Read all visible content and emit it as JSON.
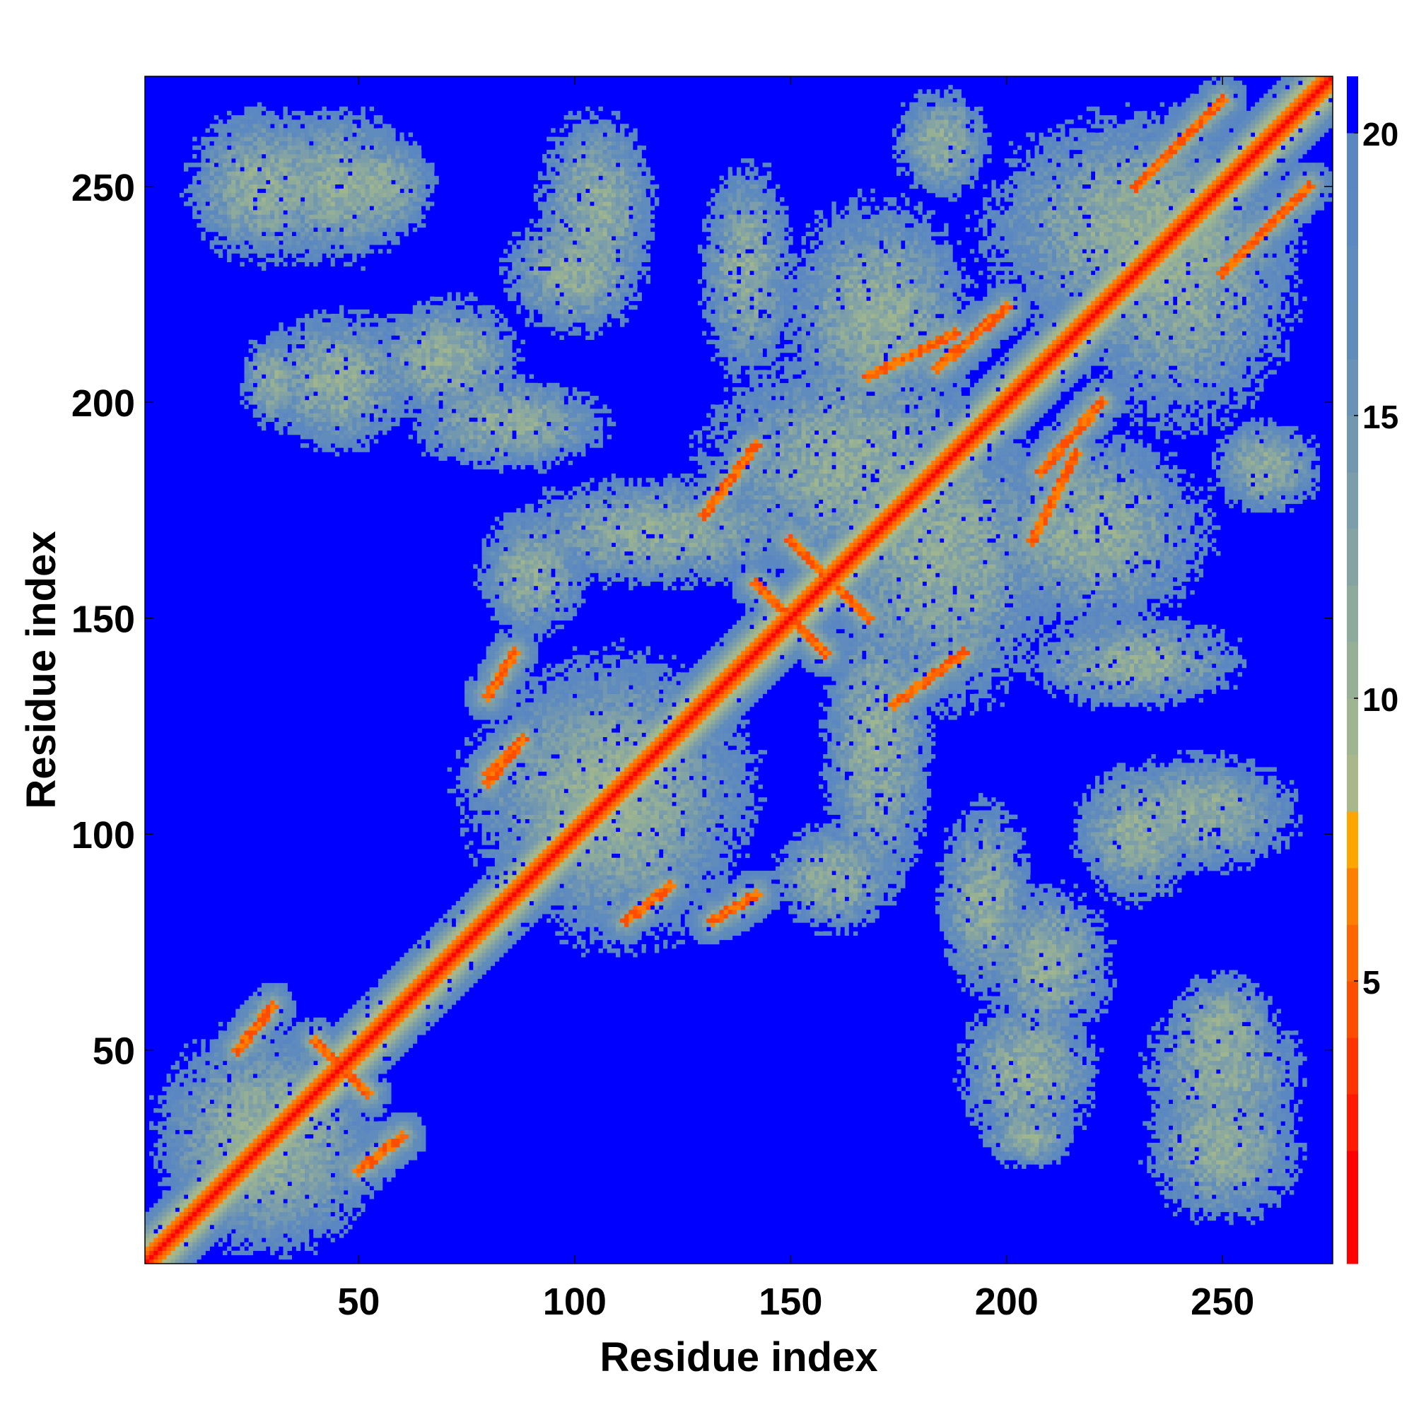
{
  "chart_data": {
    "type": "heatmap",
    "title": "",
    "xlabel": "Residue index",
    "ylabel": "Residue index",
    "xlim": [
      1,
      275
    ],
    "ylim": [
      1,
      275
    ],
    "xticks": [
      50,
      100,
      150,
      200,
      250
    ],
    "yticks": [
      50,
      100,
      150,
      200,
      250
    ],
    "colorbar": {
      "range": [
        0,
        21
      ],
      "ticks": [
        5,
        10,
        15,
        20
      ],
      "levels": [
        {
          "max": 2,
          "color": "#ff0000"
        },
        {
          "max": 3,
          "color": "#ff1a00"
        },
        {
          "max": 4,
          "color": "#ff3300"
        },
        {
          "max": 5,
          "color": "#ff4d00"
        },
        {
          "max": 6,
          "color": "#ff6600"
        },
        {
          "max": 7,
          "color": "#ff8000"
        },
        {
          "max": 8,
          "color": "#ffa500"
        },
        {
          "max": 9,
          "color": "#a8b88a"
        },
        {
          "max": 10,
          "color": "#9fb58f"
        },
        {
          "max": 11,
          "color": "#96b096"
        },
        {
          "max": 12,
          "color": "#8daa9c"
        },
        {
          "max": 13,
          "color": "#84a4a3"
        },
        {
          "max": 14,
          "color": "#7b9eaa"
        },
        {
          "max": 15,
          "color": "#7298b0"
        },
        {
          "max": 16,
          "color": "#6992b6"
        },
        {
          "max": 17,
          "color": "#608cbc"
        },
        {
          "max": 18,
          "color": "#5f8bbe"
        },
        {
          "max": 19,
          "color": "#5b88c0"
        },
        {
          "max": 20,
          "color": "#5a86c2"
        },
        {
          "max": 21,
          "color": "#0000ff"
        }
      ]
    },
    "contacts": [
      {
        "type": "diagonal",
        "from": 1,
        "to": 275
      },
      {
        "type": "anti",
        "xs": [
          40,
          52
        ],
        "ys": [
          52,
          40
        ]
      },
      {
        "type": "anti",
        "xs": [
          142,
          158
        ],
        "ys": [
          158,
          142
        ]
      },
      {
        "type": "anti",
        "xs": [
          150,
          168
        ],
        "ys": [
          168,
          150
        ]
      },
      {
        "type": "parallel",
        "xs": [
          132,
          142
        ],
        "ys": [
          80,
          86
        ]
      },
      {
        "type": "parallel",
        "xs": [
          80,
          86
        ],
        "ys": [
          132,
          142
        ]
      },
      {
        "type": "parallel",
        "xs": [
          112,
          122
        ],
        "ys": [
          80,
          88
        ]
      },
      {
        "type": "parallel",
        "xs": [
          80,
          88
        ],
        "ys": [
          112,
          122
        ]
      },
      {
        "type": "parallel",
        "xs": [
          174,
          190
        ],
        "ys": [
          130,
          142
        ]
      },
      {
        "type": "parallel",
        "xs": [
          130,
          142
        ],
        "ys": [
          174,
          190
        ]
      },
      {
        "type": "parallel",
        "xs": [
          206,
          216
        ],
        "ys": [
          168,
          188
        ]
      },
      {
        "type": "parallel",
        "xs": [
          168,
          188
        ],
        "ys": [
          206,
          216
        ]
      },
      {
        "type": "parallel",
        "xs": [
          184,
          200
        ],
        "ys": [
          208,
          222
        ]
      },
      {
        "type": "parallel",
        "xs": [
          208,
          222
        ],
        "ys": [
          184,
          200
        ]
      },
      {
        "type": "parallel",
        "xs": [
          80,
          86
        ],
        "ys": [
          114,
          120
        ]
      },
      {
        "type": "parallel",
        "xs": [
          50,
          60
        ],
        "ys": [
          22,
          30
        ]
      },
      {
        "type": "parallel",
        "xs": [
          22,
          30
        ],
        "ys": [
          50,
          60
        ]
      },
      {
        "type": "parallel",
        "xs": [
          230,
          250
        ],
        "ys": [
          250,
          270
        ]
      },
      {
        "type": "parallel",
        "xs": [
          250,
          270
        ],
        "ys": [
          230,
          250
        ]
      }
    ],
    "regions": [
      {
        "cx": 28,
        "cy": 30,
        "rx": 28,
        "ry": 28
      },
      {
        "cx": 28,
        "cy": 250,
        "rx": 20,
        "ry": 20
      },
      {
        "cx": 55,
        "cy": 250,
        "rx": 14,
        "ry": 14
      },
      {
        "cx": 100,
        "cy": 230,
        "rx": 18,
        "ry": 16
      },
      {
        "cx": 70,
        "cy": 210,
        "rx": 20,
        "ry": 16
      },
      {
        "cx": 30,
        "cy": 205,
        "rx": 8,
        "ry": 12
      },
      {
        "cx": 120,
        "cy": 170,
        "rx": 40,
        "ry": 14
      },
      {
        "cx": 108,
        "cy": 110,
        "rx": 38,
        "ry": 32
      },
      {
        "cx": 185,
        "cy": 165,
        "rx": 30,
        "ry": 40
      },
      {
        "cx": 170,
        "cy": 220,
        "rx": 25,
        "ry": 30
      },
      {
        "cx": 240,
        "cy": 230,
        "rx": 30,
        "ry": 40
      },
      {
        "cx": 245,
        "cy": 105,
        "rx": 25,
        "ry": 15
      },
      {
        "cx": 250,
        "cy": 45,
        "rx": 20,
        "ry": 20
      },
      {
        "cx": 205,
        "cy": 45,
        "rx": 18,
        "ry": 20
      },
      {
        "cx": 195,
        "cy": 85,
        "rx": 12,
        "ry": 25
      },
      {
        "cx": 230,
        "cy": 140,
        "rx": 28,
        "ry": 12
      },
      {
        "cx": 160,
        "cy": 90,
        "rx": 16,
        "ry": 14
      },
      {
        "cx": 260,
        "cy": 185,
        "rx": 14,
        "ry": 12
      }
    ]
  }
}
